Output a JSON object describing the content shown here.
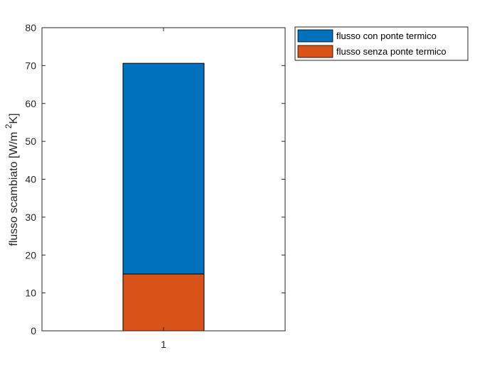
{
  "chart_data": {
    "type": "bar",
    "stacked": true,
    "categories": [
      "1"
    ],
    "series": [
      {
        "name": "flusso senza ponte termico",
        "values": [
          15
        ],
        "color": "#D95319"
      },
      {
        "name": "flusso con ponte termico",
        "values": [
          55.6
        ],
        "color": "#0072BD"
      }
    ],
    "ylabel": {
      "main": "flusso scambiato [W/m ",
      "superscript": "2",
      "tail": "K]"
    },
    "xlabel": "",
    "ylim": [
      0,
      80
    ],
    "yticks": [
      "0",
      "10",
      "20",
      "30",
      "40",
      "50",
      "60",
      "70",
      "80"
    ],
    "legend": {
      "position": "outside-top-right",
      "entries": [
        "flusso con ponte termico",
        "flusso senza ponte termico"
      ]
    },
    "grid": false
  }
}
